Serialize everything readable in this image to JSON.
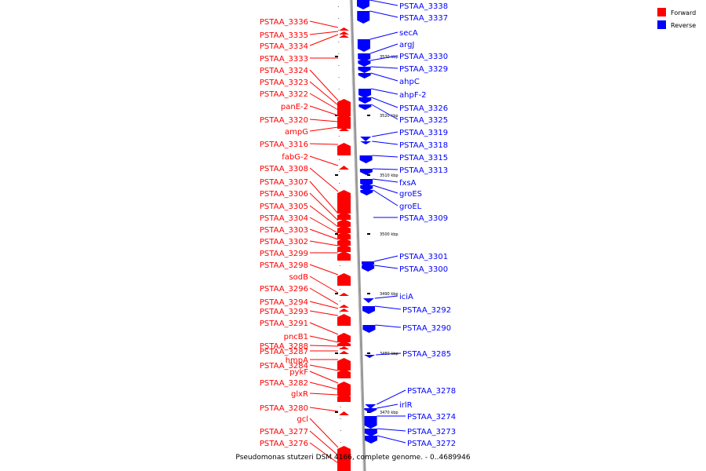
{
  "legend": [
    {
      "label": "Forward",
      "color": "#ff0000"
    },
    {
      "label": "Reverse",
      "color": "#0000ff"
    }
  ],
  "caption": "Pseudomonas stutzeri DSM 4166, complete genome. - 0..4689946",
  "colors": {
    "forward": "#ff0000",
    "reverse": "#0000ff",
    "backbone": "#888888"
  },
  "scale": {
    "unit": "kbp",
    "ticks": [
      {
        "text": "3530 kbp",
        "kbp": 3530
      },
      {
        "text": "3520 kbp",
        "kbp": 3520
      },
      {
        "text": "3510 kbp",
        "kbp": 3510
      },
      {
        "text": "3500 kbp",
        "kbp": 3500
      },
      {
        "text": "3490 kbp",
        "kbp": 3490
      },
      {
        "text": "3480 kbp",
        "kbp": 3480
      },
      {
        "text": "3470 kbp",
        "kbp": 3470
      }
    ]
  },
  "forward_genes": [
    "PSTAA_3336",
    "PSTAA_3335",
    "PSTAA_3334",
    "PSTAA_3333",
    "PSTAA_3324",
    "PSTAA_3323",
    "PSTAA_3322",
    "panE-2",
    "PSTAA_3320",
    "ampG",
    "PSTAA_3316",
    "fabG-2",
    "PSTAA_3308",
    "PSTAA_3307",
    "PSTAA_3306",
    "PSTAA_3305",
    "PSTAA_3304",
    "PSTAA_3303",
    "PSTAA_3302",
    "PSTAA_3299",
    "PSTAA_3298",
    "sodB",
    "PSTAA_3296",
    "PSTAA_3294",
    "PSTAA_3293",
    "PSTAA_3291",
    "pncB1",
    "PSTAA_3288",
    "PSTAA_3287",
    "hmpA",
    "PSTAA_3284",
    "pykF",
    "PSTAA_3282",
    "glxR",
    "PSTAA_3280",
    "gcl",
    "PSTAA_3277",
    "PSTAA_3276"
  ],
  "reverse_genes": [
    "PSTAA_3338",
    "PSTAA_3337",
    "secA",
    "argJ",
    "PSTAA_3330",
    "PSTAA_3329",
    "ahpC",
    "ahpF-2",
    "PSTAA_3326",
    "PSTAA_3325",
    "PSTAA_3319",
    "PSTAA_3318",
    "PSTAA_3315",
    "PSTAA_3313",
    "fxsA",
    "groES",
    "groEL",
    "PSTAA_3309",
    "PSTAA_3301",
    "PSTAA_3300",
    "iciA",
    "PSTAA_3292",
    "PSTAA_3290",
    "PSTAA_3285",
    "PSTAA_3278",
    "irlR",
    "PSTAA_3274",
    "PSTAA_3273",
    "PSTAA_3272"
  ]
}
